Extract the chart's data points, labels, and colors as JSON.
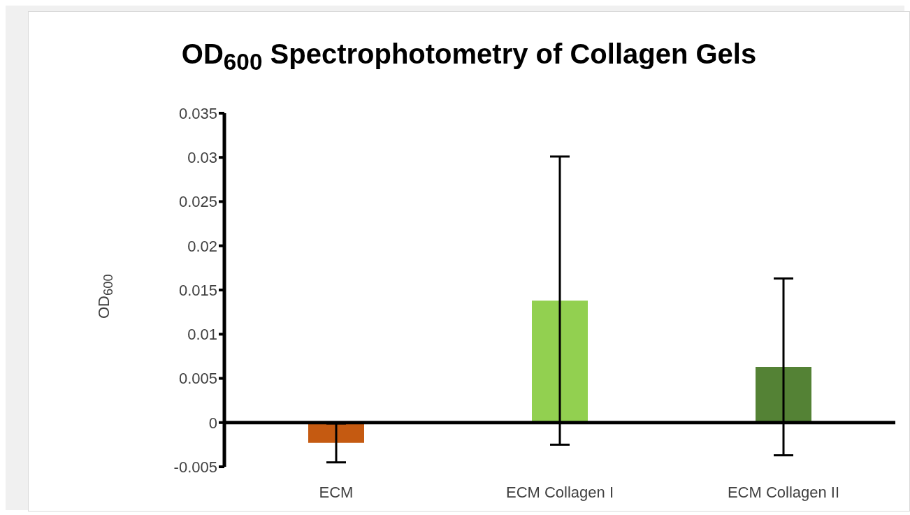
{
  "chart_data": {
    "type": "bar",
    "title": "OD$_{600}$ Spectrophotometry of Collagen Gels",
    "ylabel": "OD$_{600}$",
    "categories": [
      "ECM",
      "ECM Collagen I",
      "ECM Collagen II"
    ],
    "values": [
      -0.0023,
      0.0138,
      0.0063
    ],
    "errors": [
      0.0022,
      0.0163,
      0.01
    ],
    "colors": [
      "#c55a11",
      "#92d050",
      "#548235"
    ],
    "ylim": [
      -0.005,
      0.035
    ],
    "yticks": [
      -0.005,
      0,
      0.005,
      0.01,
      0.015,
      0.02,
      0.025,
      0.03,
      0.035
    ]
  }
}
